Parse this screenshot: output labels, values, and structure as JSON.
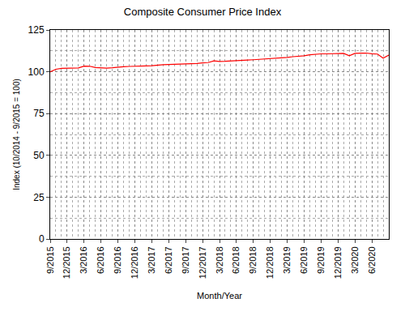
{
  "chart_data": {
    "type": "line",
    "title": "Composite Consumer Price Index",
    "x_label": "Month/Year",
    "y_label": "Index (10/2014 - 9/2015 = 100)",
    "color": "#ff0000",
    "grid": true,
    "categories": [
      "9/2015",
      null,
      null,
      "12/2015",
      null,
      null,
      "3/2016",
      null,
      null,
      "6/2016",
      null,
      null,
      "9/2016",
      null,
      null,
      "12/2016",
      null,
      null,
      "3/2017",
      null,
      null,
      "6/2017",
      null,
      null,
      "9/2017",
      null,
      null,
      "12/2017",
      null,
      null,
      "3/2018",
      null,
      null,
      "6/2018",
      null,
      null,
      "9/2018",
      null,
      null,
      "12/2018",
      null,
      null,
      "3/2019",
      null,
      null,
      "6/2019",
      null,
      null,
      "9/2019",
      null,
      null,
      "12/2019",
      null,
      null,
      "3/2020",
      null,
      null,
      "6/2020",
      null,
      null,
      null
    ],
    "values": [
      100.0,
      101.5,
      102.0,
      102.1,
      102.2,
      102.3,
      103.4,
      103.3,
      102.5,
      102.2,
      102.2,
      102.4,
      102.8,
      103.0,
      103.2,
      103.4,
      103.5,
      103.5,
      103.6,
      104.0,
      104.2,
      104.3,
      104.4,
      104.5,
      104.5,
      104.7,
      105.0,
      105.3,
      105.5,
      106.5,
      106.2,
      106.3,
      106.4,
      106.6,
      106.8,
      107.0,
      107.2,
      107.4,
      107.6,
      107.8,
      108.0,
      108.3,
      108.6,
      109.0,
      109.2,
      109.6,
      110.2,
      110.6,
      110.7,
      110.7,
      110.8,
      110.9,
      111.0,
      109.6,
      111.0,
      111.1,
      111.2,
      110.8,
      110.6,
      108.2,
      110.0
    ],
    "ylim": [
      0,
      125
    ],
    "yticks": [
      0,
      25,
      50,
      75,
      100,
      125
    ]
  }
}
